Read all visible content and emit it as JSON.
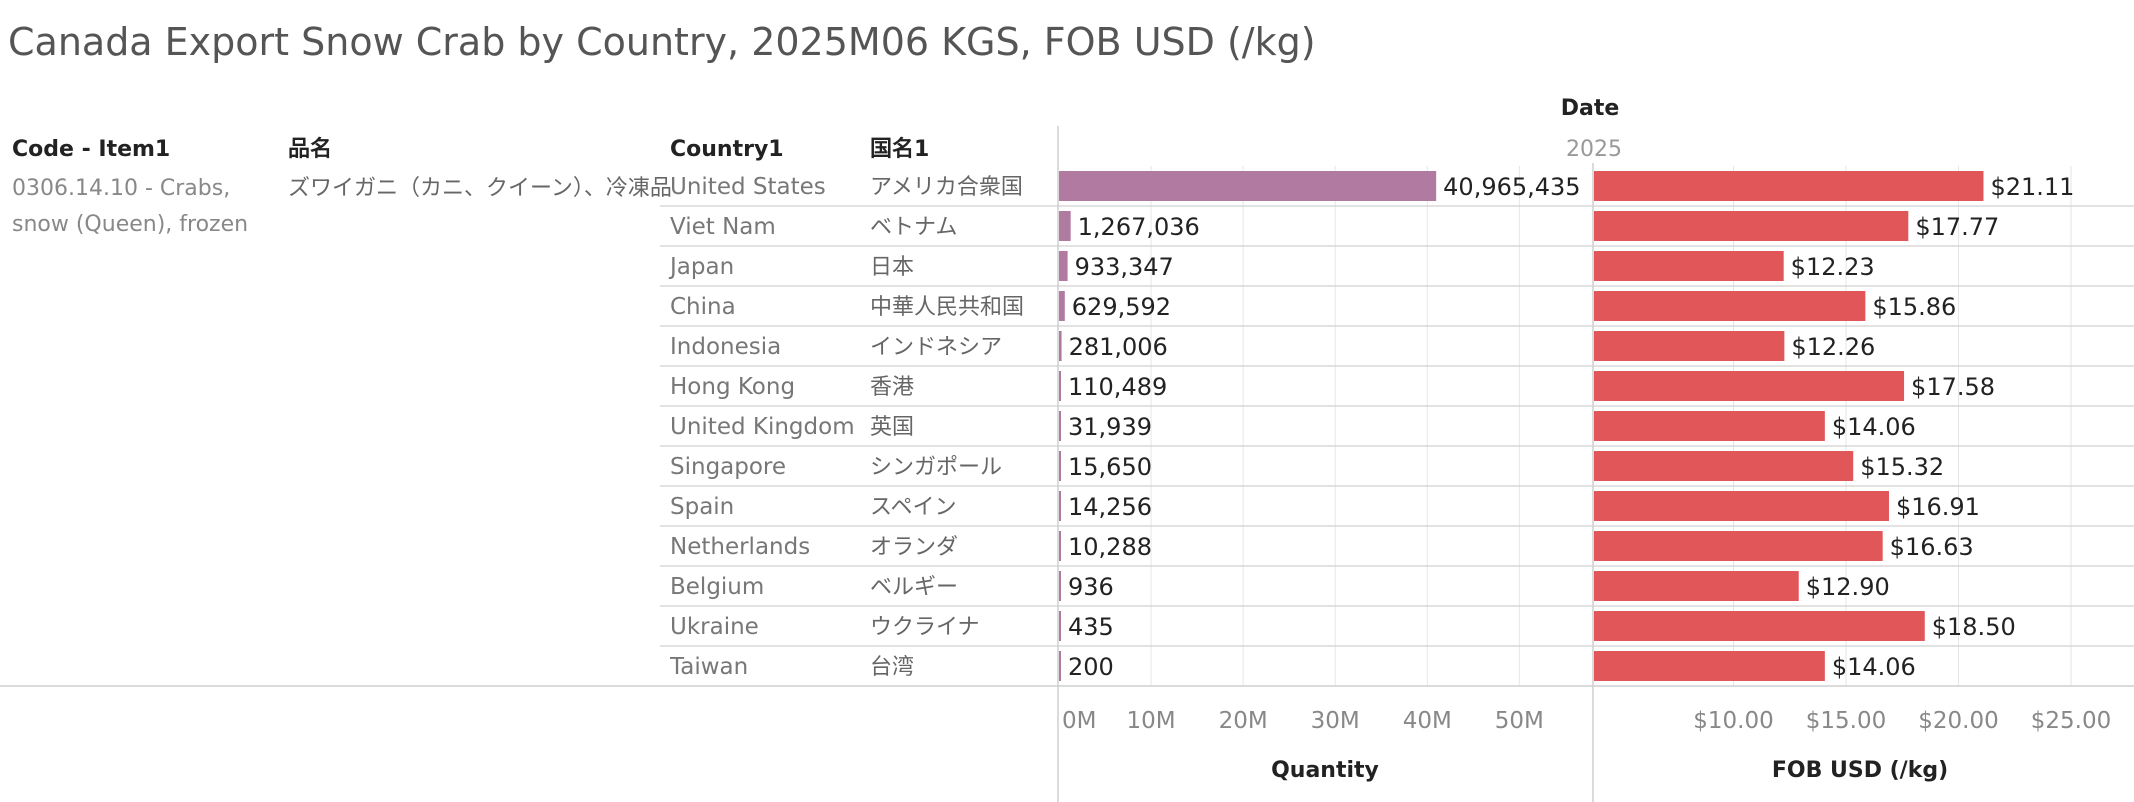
{
  "title": "Canada Export Snow Crab by Country, 2025M06 KGS, FOB USD (/kg)",
  "headers": {
    "code_item": "Code - Item1",
    "item_jp": "品名",
    "country": "Country1",
    "country_jp": "国名1",
    "date": "Date",
    "year": "2025"
  },
  "item": {
    "code_lines": [
      "0306.14.10 - Crabs,",
      "snow (Queen), frozen"
    ],
    "name_jp": "ズワイガニ（カニ、クイーン）、冷凍品"
  },
  "colors": {
    "quantity_bar": "#b07aa1",
    "fob_bar": "#e15759",
    "grid": "#e6e6e6",
    "row_line": "#d0d0d0"
  },
  "chart_data": [
    {
      "type": "bar",
      "orientation": "horizontal",
      "xlabel": "Quantity",
      "xlim": [
        0,
        58000000
      ],
      "ticks": [
        {
          "value": 0,
          "label": "0M"
        },
        {
          "value": 10000000,
          "label": "10M"
        },
        {
          "value": 20000000,
          "label": "20M"
        },
        {
          "value": 30000000,
          "label": "30M"
        },
        {
          "value": 40000000,
          "label": "40M"
        },
        {
          "value": 50000000,
          "label": "50M"
        }
      ],
      "categories": [
        "United States",
        "Viet Nam",
        "Japan",
        "China",
        "Indonesia",
        "Hong Kong",
        "United Kingdom",
        "Singapore",
        "Spain",
        "Netherlands",
        "Belgium",
        "Ukraine",
        "Taiwan"
      ],
      "values": [
        40965435,
        1267036,
        933347,
        629592,
        281006,
        110489,
        31939,
        15650,
        14256,
        10288,
        936,
        435,
        200
      ],
      "labels": [
        "40,965,435",
        "1,267,036",
        "933,347",
        "629,592",
        "281,006",
        "110,489",
        "31,939",
        "15,650",
        "14,256",
        "10,288",
        "936",
        "435",
        "200"
      ]
    },
    {
      "type": "bar",
      "orientation": "horizontal",
      "xlabel": "FOB USD (/kg)",
      "xlim": [
        3.8,
        27.8
      ],
      "ticks": [
        {
          "value": 10,
          "label": "$10.00"
        },
        {
          "value": 15,
          "label": "$15.00"
        },
        {
          "value": 20,
          "label": "$20.00"
        },
        {
          "value": 25,
          "label": "$25.00"
        }
      ],
      "categories": [
        "United States",
        "Viet Nam",
        "Japan",
        "China",
        "Indonesia",
        "Hong Kong",
        "United Kingdom",
        "Singapore",
        "Spain",
        "Netherlands",
        "Belgium",
        "Ukraine",
        "Taiwan"
      ],
      "values": [
        21.11,
        17.77,
        12.23,
        15.86,
        12.26,
        17.58,
        14.06,
        15.32,
        16.91,
        16.63,
        12.9,
        18.5,
        14.06
      ],
      "labels": [
        "$21.11",
        "$17.77",
        "$12.23",
        "$15.86",
        "$12.26",
        "$17.58",
        "$14.06",
        "$15.32",
        "$16.91",
        "$16.63",
        "$12.90",
        "$18.50",
        "$14.06"
      ]
    }
  ],
  "rows": [
    {
      "country": "United States",
      "country_jp": "アメリカ合衆国"
    },
    {
      "country": "Viet Nam",
      "country_jp": "ベトナム"
    },
    {
      "country": "Japan",
      "country_jp": "日本"
    },
    {
      "country": "China",
      "country_jp": "中華人民共和国"
    },
    {
      "country": "Indonesia",
      "country_jp": "インドネシア"
    },
    {
      "country": "Hong Kong",
      "country_jp": "香港"
    },
    {
      "country": "United Kingdom",
      "country_jp": "英国"
    },
    {
      "country": "Singapore",
      "country_jp": "シンガポール"
    },
    {
      "country": "Spain",
      "country_jp": "スペイン"
    },
    {
      "country": "Netherlands",
      "country_jp": "オランダ"
    },
    {
      "country": "Belgium",
      "country_jp": "ベルギー"
    },
    {
      "country": "Ukraine",
      "country_jp": "ウクライナ"
    },
    {
      "country": "Taiwan",
      "country_jp": "台湾"
    }
  ]
}
